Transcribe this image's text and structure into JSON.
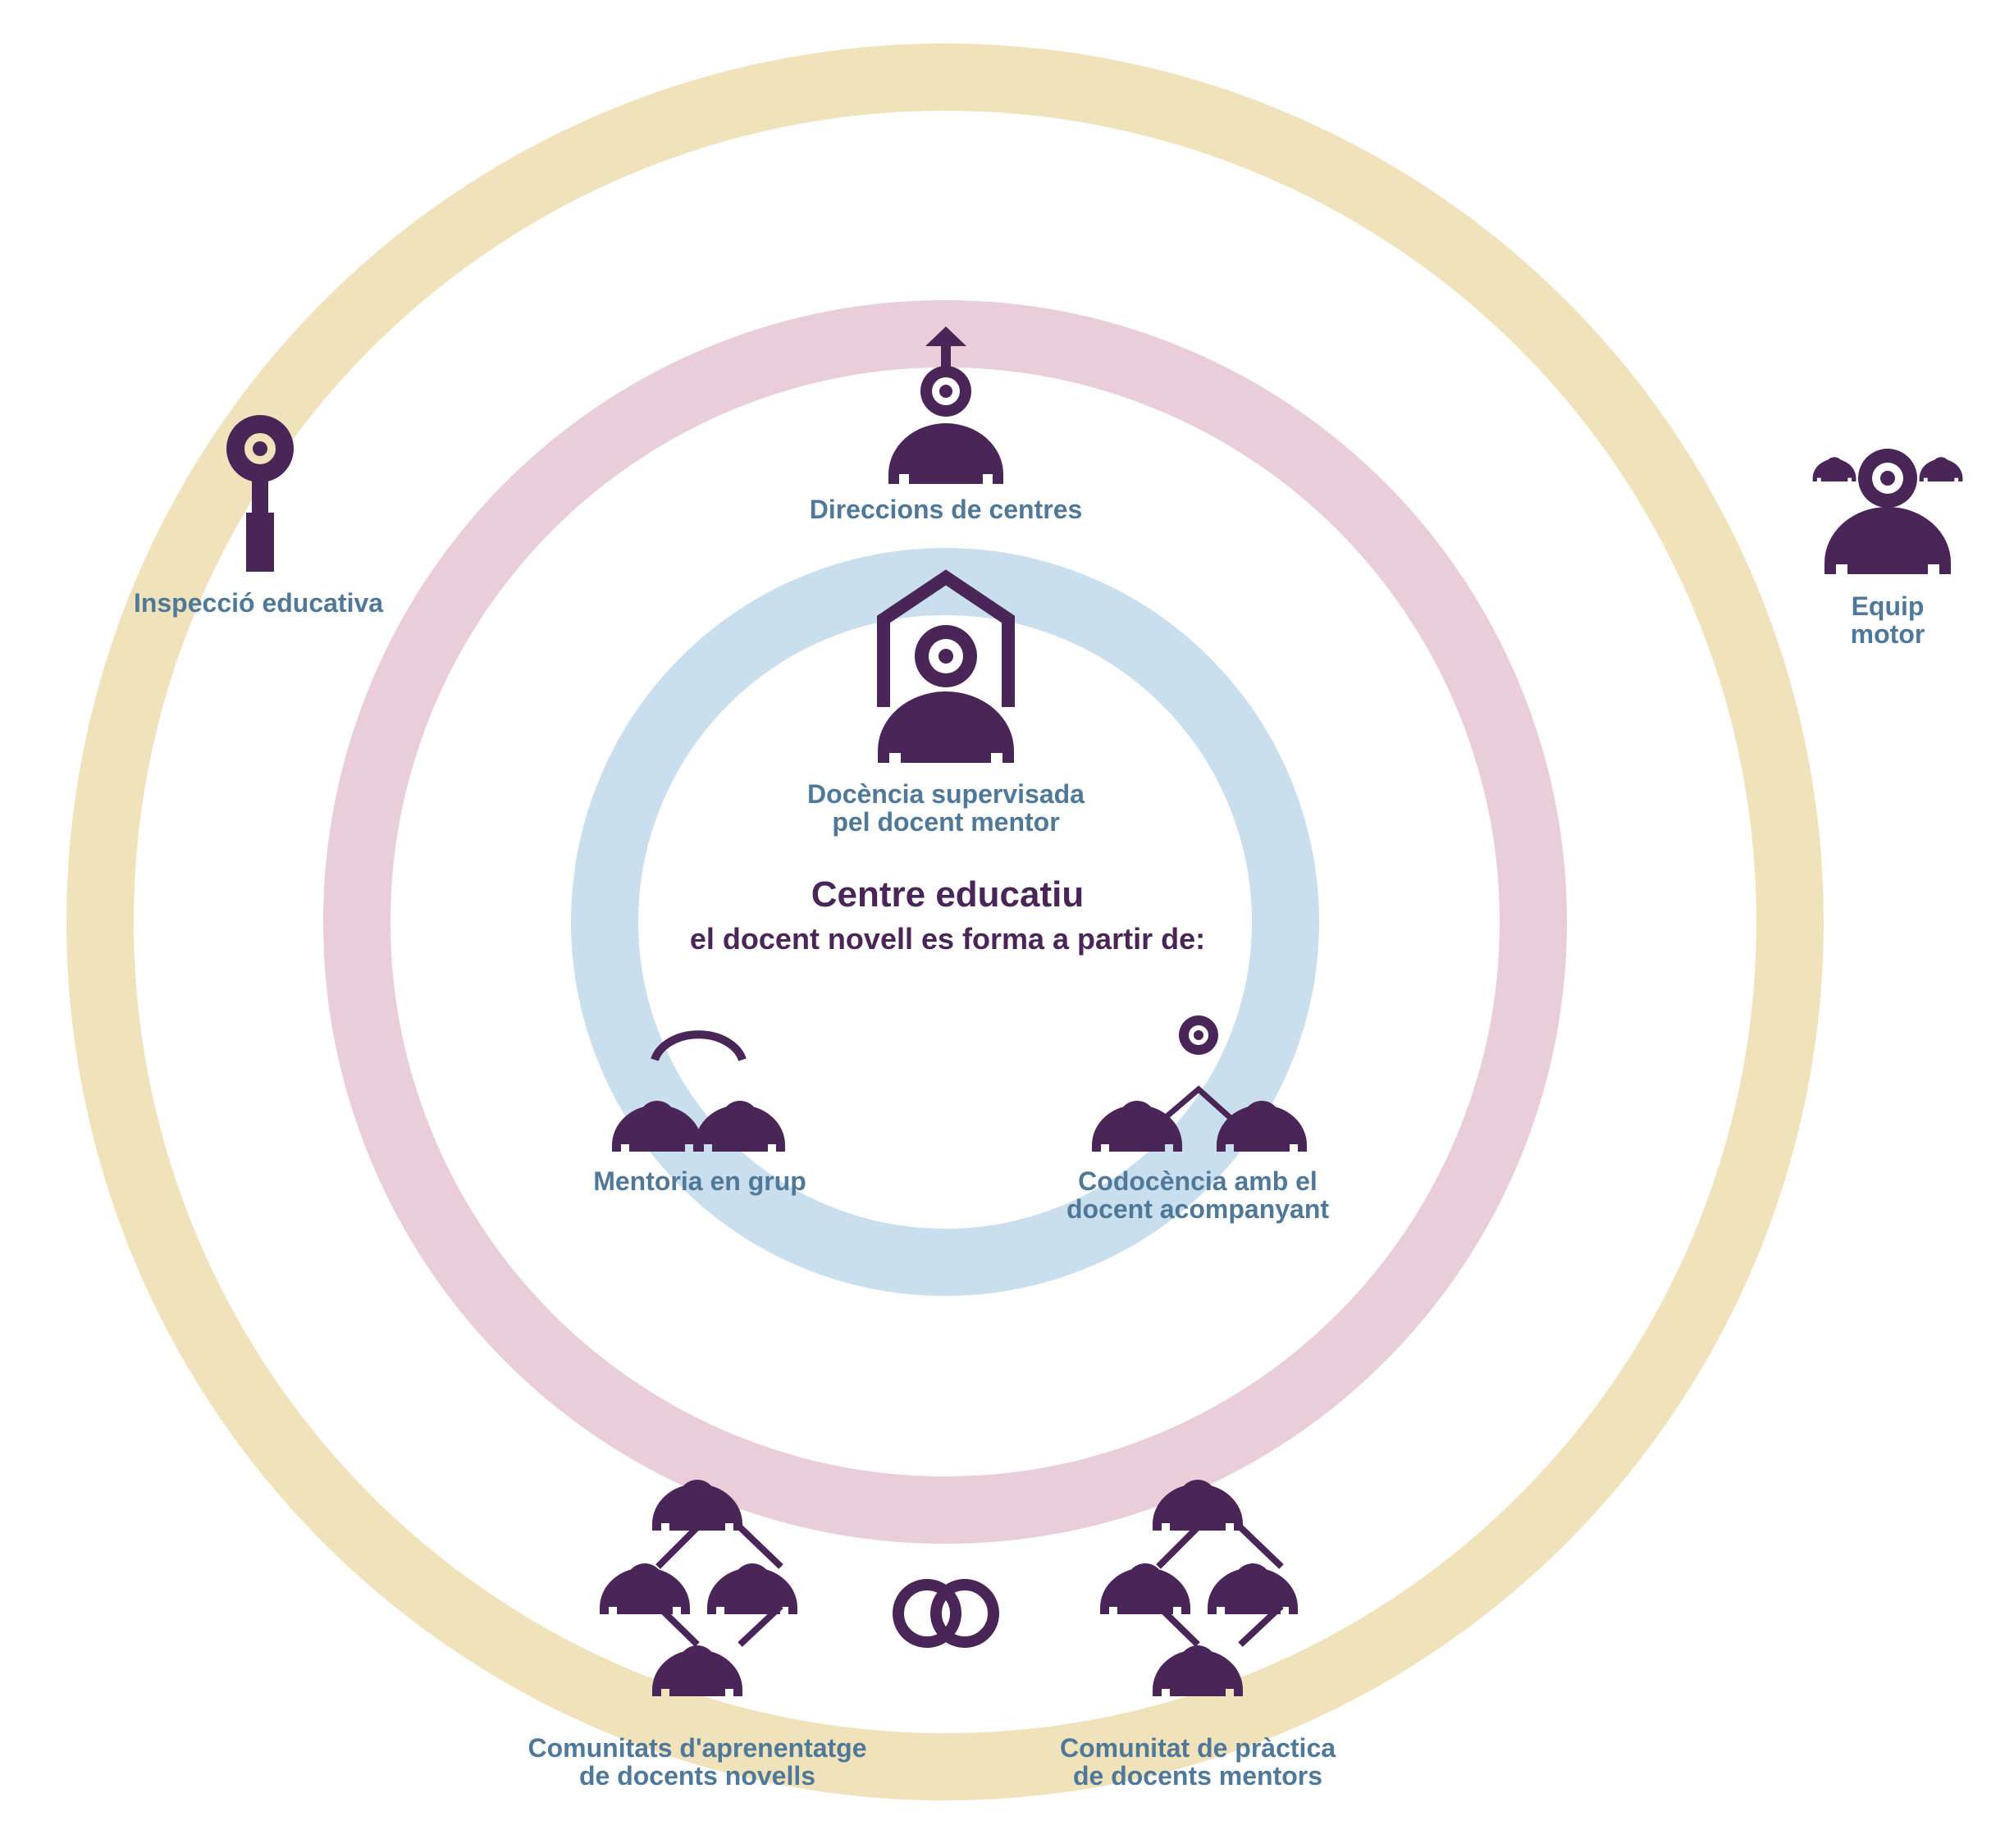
{
  "colors": {
    "outer_ring": "#f0e3bc",
    "middle_ring": "#e9cdd9",
    "inner_ring": "#c9dfee",
    "icon": "#4a2558",
    "label": "#4f7899",
    "title": "#4a2558"
  },
  "center": {
    "title": "Centre educatiu",
    "subtitle": "el docent novell es forma a partir de:"
  },
  "labels": {
    "inspeccio": "Inspecció educativa",
    "direccions": "Direccions de centres",
    "equip": "Equip\nmotor",
    "docencia": "Docència supervisada\npel docent mentor",
    "mentoria": "Mentoria en grup",
    "codocencia": "Codocència amb el\ndocent acompanyant",
    "comunitats": "Comunitats d'aprenentatge\nde docents novells",
    "comunitat": "Comunitat de pràctica\nde docents mentors"
  },
  "icons": {
    "inspeccio": "key-person-icon",
    "direccions": "person-arrow-up-icon",
    "equip": "team-leader-icon",
    "docencia": "person-in-house-icon",
    "mentoria": "paired-persons-icon",
    "codocencia": "co-teaching-icon",
    "comunitats": "learning-community-icon",
    "link": "interlinked-rings-icon",
    "comunitat": "practice-community-icon"
  }
}
